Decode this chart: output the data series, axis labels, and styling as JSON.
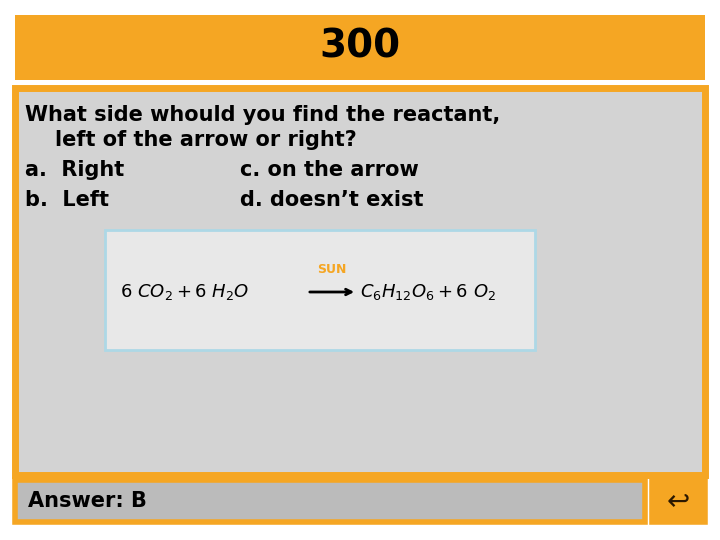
{
  "title": "300",
  "title_bg": "#F5A623",
  "title_text_color": "#000000",
  "main_bg": "#D3D3D3",
  "main_border": "#F5A623",
  "question_line1": "What side whould you find the reactant,",
  "question_line2": "left of the arrow or right?",
  "option_a": "a.  Right",
  "option_c": "c. on the arrow",
  "option_b": "b.  Left",
  "option_d": "d. doesn’t exist",
  "answer": "Answer: B",
  "answer_bg": "#BBBBBB",
  "equation_box_border": "#ADD8E6",
  "equation_box_bg": "#E8E8E8",
  "sun_color": "#F5A623",
  "text_color": "#000000",
  "bg_color": "#FFFFFF",
  "font_size_title": 28,
  "font_size_question": 15,
  "font_size_options": 15,
  "font_size_answer": 15,
  "font_size_eq": 13
}
